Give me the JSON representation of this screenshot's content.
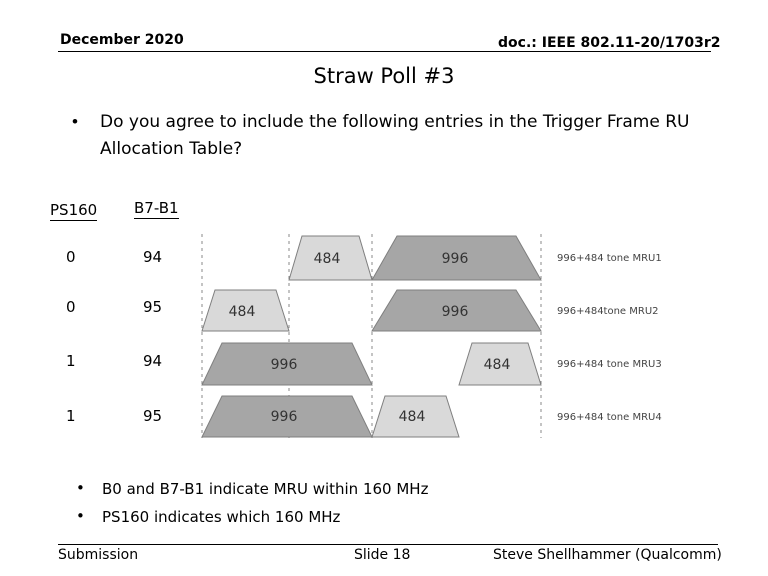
{
  "header": {
    "date": "December 2020",
    "doc": "doc.: IEEE 802.11-20/1703r2"
  },
  "title": "Straw Poll #3",
  "question": "Do you agree to include the following entries in the Trigger Frame RU Allocation Table?",
  "table": {
    "headers": [
      "PS160",
      "B7-B1"
    ],
    "rows": [
      {
        "ps160": "0",
        "b7b1": "94",
        "label": "996+484 tone MRU1",
        "blocks": [
          "484",
          "996"
        ]
      },
      {
        "ps160": "0",
        "b7b1": "95",
        "label": "996+484tone MRU2",
        "blocks": [
          "484",
          "996"
        ]
      },
      {
        "ps160": "1",
        "b7b1": "94",
        "label": "996+484 tone MRU3",
        "blocks": [
          "996",
          "484"
        ]
      },
      {
        "ps160": "1",
        "b7b1": "95",
        "label": "996+484 tone MRU4",
        "blocks": [
          "996",
          "484"
        ]
      }
    ]
  },
  "bullets": [
    "B0 and B7-B1 indicate MRU within 160 MHz",
    "PS160 indicates which 160 MHz"
  ],
  "footer": {
    "left": "Submission",
    "center": "Slide 18",
    "right": "Steve Shellhammer (Qualcomm)"
  },
  "colors": {
    "light_block": "#d9d9d9",
    "dark_block": "#a6a6a6",
    "outline": "#7f7f7f"
  }
}
